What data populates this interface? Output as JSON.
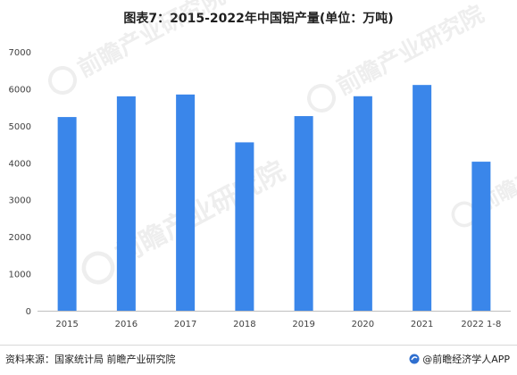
{
  "title": "图表7：2015-2022年中国铝产量(单位：万吨)",
  "chart_data": {
    "type": "bar",
    "categories": [
      "2015",
      "2016",
      "2017",
      "2018",
      "2019",
      "2020",
      "2021",
      "2022 1-8"
    ],
    "values": [
      5236,
      5796,
      5845,
      4552,
      5261,
      5798,
      6103,
      4029
    ],
    "title": "图表7：2015-2022年中国铝产量(单位：万吨)",
    "xlabel": "",
    "ylabel": "",
    "ylim": [
      0,
      7000
    ],
    "yticks": [
      0,
      1000,
      2000,
      3000,
      4000,
      5000,
      6000,
      7000
    ],
    "grid": false,
    "legend": "none",
    "bar_color": "#3a86ea"
  },
  "footer": {
    "source": "资料来源：国家统计局 前瞻产业研究院",
    "brand": "@前瞻经济学人APP"
  },
  "watermark": {
    "text": "前瞻产业研究院",
    "icon": "qianzhan-logo-icon"
  },
  "colors": {
    "bar": "#3a86ea",
    "axis": "#bfbfbf",
    "tick_text": "#404040"
  }
}
